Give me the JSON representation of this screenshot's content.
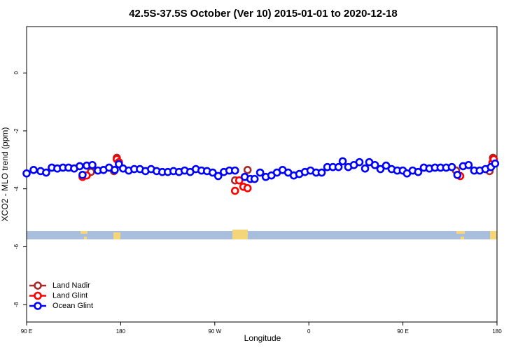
{
  "chart_data": {
    "type": "scatter",
    "title": "42.5S-37.5S October (Ver 10)   2015-01-01 to 2020-12-18",
    "x_label": "Longitude",
    "y_label": "XCO2 - MLO trend (ppm)",
    "xlim": [
      90,
      540
    ],
    "ylim": [
      -8.6,
      1.6
    ],
    "xticks": [
      {
        "value": 90,
        "label": "90 E"
      },
      180,
      {
        "value": 270,
        "label": "90 W"
      },
      0,
      {
        "value": 450,
        "label": "90 E"
      },
      {
        "value": 540,
        "label": "180"
      }
    ],
    "yticks": [
      0,
      -2,
      -4,
      -6,
      -8
    ],
    "legend": "bottom-left",
    "grid": false,
    "series": [
      {
        "name": "Land Nadir",
        "color": "#a52a2a",
        "x": [
          151.5,
          173.6,
          176.3,
          289.4,
          301.4,
          500.8,
          532.9,
          536.2
        ],
        "values": [
          -3.42,
          -3.39,
          -2.93,
          -3.71,
          -3.35,
          -3.37,
          -3.39,
          -2.93
        ]
      },
      {
        "name": "Land Glint",
        "color": "#ff0000",
        "x": [
          143.5,
          147.5,
          176.3,
          178.3,
          289.4,
          293.4,
          297.4,
          301.4,
          504.8,
          535.6,
          536.9
        ],
        "values": [
          -3.59,
          -3.54,
          -2.98,
          -3.08,
          -4.07,
          -3.71,
          -3.93,
          -3.98,
          -3.56,
          -3.1,
          -2.98
        ]
      },
      {
        "name": "Ocean Glint",
        "color": "#0000ff",
        "x": [
          90.0,
          96.7,
          103.4,
          108.7,
          114.1,
          119.4,
          124.8,
          130.1,
          135.5,
          140.8,
          143.5,
          147.5,
          152.9,
          158.2,
          163.6,
          168.9,
          174.3,
          178.3,
          182.3,
          187.7,
          193.0,
          198.4,
          203.7,
          209.1,
          214.4,
          219.8,
          225.1,
          230.5,
          235.8,
          241.2,
          246.5,
          251.9,
          257.3,
          262.6,
          268.0,
          273.3,
          278.7,
          284.0,
          289.4,
          298.7,
          304.1,
          308.1,
          313.4,
          318.8,
          324.2,
          329.5,
          334.9,
          340.2,
          345.6,
          350.9,
          356.3,
          361.6,
          367.0,
          372.3,
          377.7,
          383.0,
          388.4,
          392.4,
          397.7,
          403.1,
          408.4,
          413.8,
          417.8,
          423.2,
          428.5,
          433.9,
          439.2,
          444.6,
          449.9,
          453.9,
          459.3,
          464.6,
          470.0,
          475.3,
          480.7,
          486.0,
          491.4,
          496.8,
          502.1,
          507.5,
          512.8,
          518.2,
          523.5,
          528.9,
          534.2,
          538.2
        ],
        "values": [
          -3.47,
          -3.35,
          -3.39,
          -3.44,
          -3.27,
          -3.3,
          -3.27,
          -3.27,
          -3.3,
          -3.22,
          -3.52,
          -3.2,
          -3.18,
          -3.37,
          -3.35,
          -3.27,
          -3.35,
          -3.15,
          -3.3,
          -3.37,
          -3.32,
          -3.32,
          -3.39,
          -3.32,
          -3.39,
          -3.42,
          -3.42,
          -3.39,
          -3.42,
          -3.37,
          -3.42,
          -3.32,
          -3.37,
          -3.39,
          -3.44,
          -3.56,
          -3.42,
          -3.37,
          -3.37,
          -3.59,
          -3.66,
          -3.66,
          -3.44,
          -3.59,
          -3.54,
          -3.44,
          -3.35,
          -3.44,
          -3.54,
          -3.49,
          -3.42,
          -3.37,
          -3.44,
          -3.44,
          -3.25,
          -3.25,
          -3.25,
          -3.05,
          -3.25,
          -3.18,
          -3.08,
          -3.3,
          -3.08,
          -3.18,
          -3.32,
          -3.2,
          -3.32,
          -3.37,
          -3.37,
          -3.47,
          -3.37,
          -3.42,
          -3.27,
          -3.3,
          -3.27,
          -3.27,
          -3.27,
          -3.25,
          -3.52,
          -3.22,
          -3.18,
          -3.37,
          -3.37,
          -3.32,
          -3.25,
          -3.13
        ]
      }
    ]
  }
}
